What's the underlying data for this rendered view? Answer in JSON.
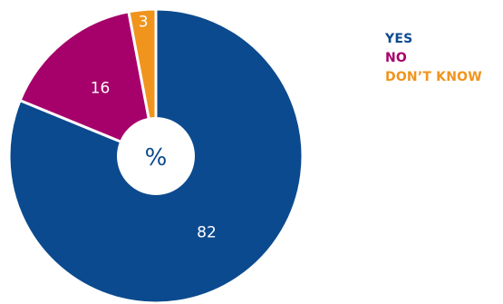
{
  "chart_data": {
    "type": "pie",
    "center_label": "%",
    "categories": [
      "YES",
      "NO",
      "DON'T KNOW"
    ],
    "values": [
      82,
      16,
      3
    ],
    "value_labels": [
      "82",
      "16",
      "3"
    ],
    "colors": [
      "#0b4a8e",
      "#a6006a",
      "#f0941e"
    ],
    "legend_position": "top-right"
  },
  "legend": {
    "items": [
      {
        "label": "YES",
        "color": "#0b4a8e"
      },
      {
        "label": "NO",
        "color": "#a6006a"
      },
      {
        "label": "DON’T KNOW",
        "color": "#f0941e"
      }
    ]
  }
}
